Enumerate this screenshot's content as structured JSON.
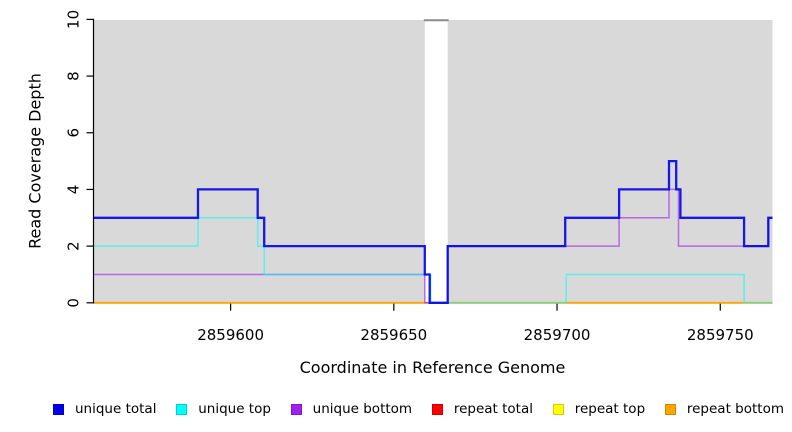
{
  "chart_data": {
    "type": "line",
    "subtype": "step-coverage-plot",
    "title": "",
    "xlabel": "Coordinate in Reference Genome",
    "ylabel": "Read Coverage Depth",
    "xlim": [
      2859558,
      2859766
    ],
    "ylim": [
      0,
      10
    ],
    "x_ticks": [
      2859600,
      2859650,
      2859700,
      2859750
    ],
    "y_ticks": [
      0,
      2,
      4,
      6,
      8,
      10
    ],
    "plot_bg": "#d9d9d9",
    "gap": {
      "x0": 2859659.5,
      "x1": 2859666.5,
      "top_border_color": "#8c8c8c"
    },
    "series": [
      {
        "name": "repeat total",
        "color": "#ff0000",
        "width": 1.4,
        "opacity": 1,
        "points": [
          [
            2859558,
            0
          ],
          [
            2859766,
            0
          ]
        ]
      },
      {
        "name": "repeat top",
        "color": "#ffff00",
        "width": 1.4,
        "opacity": 1,
        "points": [
          [
            2859558,
            0
          ],
          [
            2859766,
            0
          ]
        ]
      },
      {
        "name": "repeat bottom",
        "color": "#ffa500",
        "width": 1.8,
        "opacity": 1,
        "points": [
          [
            2859558,
            0
          ],
          [
            2859766,
            0
          ]
        ]
      },
      {
        "name": "unique bottom",
        "color": "#a020f0",
        "width": 1.5,
        "opacity": 0.62,
        "points": [
          [
            2859558,
            1
          ],
          [
            2859659.5,
            1
          ],
          [
            2859659.5,
            0
          ],
          [
            2859666.5,
            0
          ],
          [
            2859666.5,
            2
          ],
          [
            2859719,
            2
          ],
          [
            2859719,
            3
          ],
          [
            2859734.3,
            3
          ],
          [
            2859734.3,
            4
          ],
          [
            2859737.2,
            4
          ],
          [
            2859737.2,
            2
          ],
          [
            2859764.7,
            2
          ],
          [
            2859764.7,
            3
          ],
          [
            2859766,
            3
          ]
        ]
      },
      {
        "name": "unique top",
        "color": "#00ffff",
        "width": 1.5,
        "opacity": 0.58,
        "points": [
          [
            2859558,
            2
          ],
          [
            2859590,
            2
          ],
          [
            2859590,
            3
          ],
          [
            2859608.3,
            3
          ],
          [
            2859608.3,
            2
          ],
          [
            2859610.3,
            2
          ],
          [
            2859610.3,
            1
          ],
          [
            2859661.3,
            1
          ],
          [
            2859661.3,
            0
          ],
          [
            2859702.8,
            0
          ],
          [
            2859702.8,
            1
          ],
          [
            2859757.3,
            1
          ],
          [
            2859757.3,
            0
          ],
          [
            2859766,
            0
          ]
        ]
      },
      {
        "name": "unique total",
        "color": "#0808e8",
        "width": 2.3,
        "opacity": 0.93,
        "points": [
          [
            2859558,
            3
          ],
          [
            2859590,
            3
          ],
          [
            2859590,
            4
          ],
          [
            2859608.3,
            4
          ],
          [
            2859608.3,
            3
          ],
          [
            2859610.3,
            3
          ],
          [
            2859610.3,
            2
          ],
          [
            2859659.5,
            2
          ],
          [
            2859659.5,
            1
          ],
          [
            2859661,
            1
          ],
          [
            2859661,
            0
          ],
          [
            2859666.5,
            0
          ],
          [
            2859666.5,
            2
          ],
          [
            2859702.5,
            2
          ],
          [
            2859702.5,
            3
          ],
          [
            2859719,
            3
          ],
          [
            2859719,
            4
          ],
          [
            2859734.3,
            4
          ],
          [
            2859734.3,
            5
          ],
          [
            2859736.5,
            5
          ],
          [
            2859736.5,
            4
          ],
          [
            2859737.8,
            4
          ],
          [
            2859737.8,
            3
          ],
          [
            2859757.3,
            3
          ],
          [
            2859757.3,
            2
          ],
          [
            2859764.7,
            2
          ],
          [
            2859764.7,
            3
          ],
          [
            2859766,
            3
          ]
        ]
      }
    ],
    "legend": [
      {
        "label": "unique total",
        "color": "#0000ee"
      },
      {
        "label": "unique top",
        "color": "#00ffff"
      },
      {
        "label": "unique bottom",
        "color": "#a020f0"
      },
      {
        "label": "repeat total",
        "color": "#ff0000"
      },
      {
        "label": "repeat top",
        "color": "#ffff00"
      },
      {
        "label": "repeat bottom",
        "color": "#ffa500"
      }
    ],
    "legend_position": "bottom",
    "grid": false
  }
}
